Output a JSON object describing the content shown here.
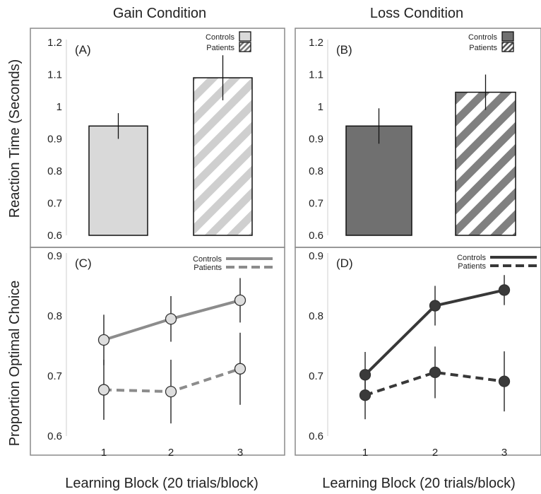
{
  "figure": {
    "gain_title": "Gain Condition",
    "loss_title": "Loss Condition",
    "rt_ylabel": "Reaction Time (Seconds)",
    "choice_ylabel": "Proportion Optimal Choice",
    "xlabel": "Learning Block (20 trials/block)"
  },
  "colors": {
    "gain_fill": "#d9d9d9",
    "gain_stripe": "#cfcfcf",
    "loss_fill": "#707070",
    "loss_stripe": "#808080",
    "gain_line": "#8c8c8c",
    "gain_marker": "#dedede",
    "loss_line": "#383838",
    "loss_marker": "#3a3a3a",
    "frame": "#8a8a8a"
  },
  "chart_data": [
    {
      "panel": "A",
      "label": "(A)",
      "type": "bar",
      "categories": [
        "Controls",
        "Patients"
      ],
      "values": [
        0.94,
        1.09
      ],
      "errors": [
        0.04,
        0.07
      ],
      "legend": [
        "Controls",
        "Patients"
      ],
      "legend_position": "top-right",
      "ylim": [
        0.6,
        1.2
      ],
      "yticks": [
        0.6,
        0.7,
        0.8,
        0.9,
        1,
        1.1,
        1.2
      ],
      "ylabel": "Reaction Time (Seconds)",
      "grid": false
    },
    {
      "panel": "B",
      "label": "(B)",
      "type": "bar",
      "categories": [
        "Controls",
        "Patients"
      ],
      "values": [
        0.94,
        1.045
      ],
      "errors": [
        0.055,
        0.055
      ],
      "legend": [
        "Controls",
        "Patients"
      ],
      "legend_position": "top-right",
      "ylim": [
        0.6,
        1.2
      ],
      "yticks": [
        0.6,
        0.7,
        0.8,
        0.9,
        1,
        1.1,
        1.2
      ],
      "grid": false
    },
    {
      "panel": "C",
      "label": "(C)",
      "type": "line",
      "x": [
        1,
        2,
        3
      ],
      "xticks": [
        1,
        2,
        3
      ],
      "series": [
        {
          "name": "Controls",
          "values": [
            0.76,
            0.795,
            0.826
          ],
          "errors": [
            0.042,
            0.038,
            0.037
          ],
          "dashed": false
        },
        {
          "name": "Patients",
          "values": [
            0.677,
            0.674,
            0.712
          ],
          "errors": [
            0.05,
            0.053,
            0.06
          ],
          "dashed": true
        }
      ],
      "legend_position": "top-right",
      "ylim": [
        0.6,
        0.9
      ],
      "yticks": [
        0.6,
        0.7,
        0.8,
        0.9
      ],
      "ylabel": "Proportion Optimal Choice",
      "xlabel": "Learning Block (20 trials/block)",
      "grid": false
    },
    {
      "panel": "D",
      "label": "(D)",
      "type": "line",
      "x": [
        1,
        2,
        3
      ],
      "xticks": [
        1,
        2,
        3
      ],
      "series": [
        {
          "name": "Controls",
          "values": [
            0.702,
            0.817,
            0.843
          ],
          "errors": [
            0.038,
            0.033,
            0.025
          ],
          "dashed": false
        },
        {
          "name": "Patients",
          "values": [
            0.668,
            0.706,
            0.691
          ],
          "errors": [
            0.04,
            0.043,
            0.05
          ],
          "dashed": true
        }
      ],
      "legend_position": "top-right",
      "ylim": [
        0.6,
        0.9
      ],
      "yticks": [
        0.6,
        0.7,
        0.8,
        0.9
      ],
      "xlabel": "Learning Block (20 trials/block)",
      "grid": false
    }
  ]
}
